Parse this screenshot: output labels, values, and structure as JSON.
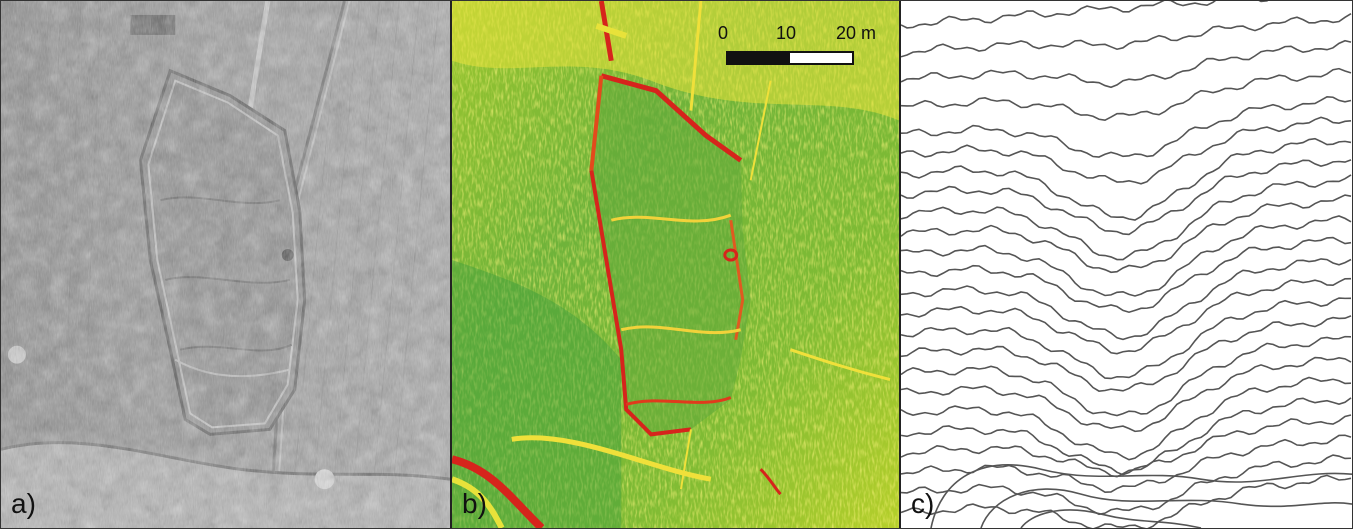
{
  "panels": [
    {
      "id": "a",
      "label": "a)",
      "type": "hillshade",
      "description_colors": [
        "#5a5a5a",
        "#9a9a9a",
        "#d0d0d0"
      ]
    },
    {
      "id": "b",
      "label": "b)",
      "type": "slope-map",
      "description_colors": [
        "#2e9e3e",
        "#c8d82a",
        "#f2e43a",
        "#d6241c"
      ]
    },
    {
      "id": "c",
      "label": "c)",
      "type": "contour-map",
      "description_colors": [
        "#ffffff",
        "#555555"
      ]
    }
  ],
  "scalebar": {
    "ticks": [
      "0",
      "10",
      "20 m"
    ]
  }
}
